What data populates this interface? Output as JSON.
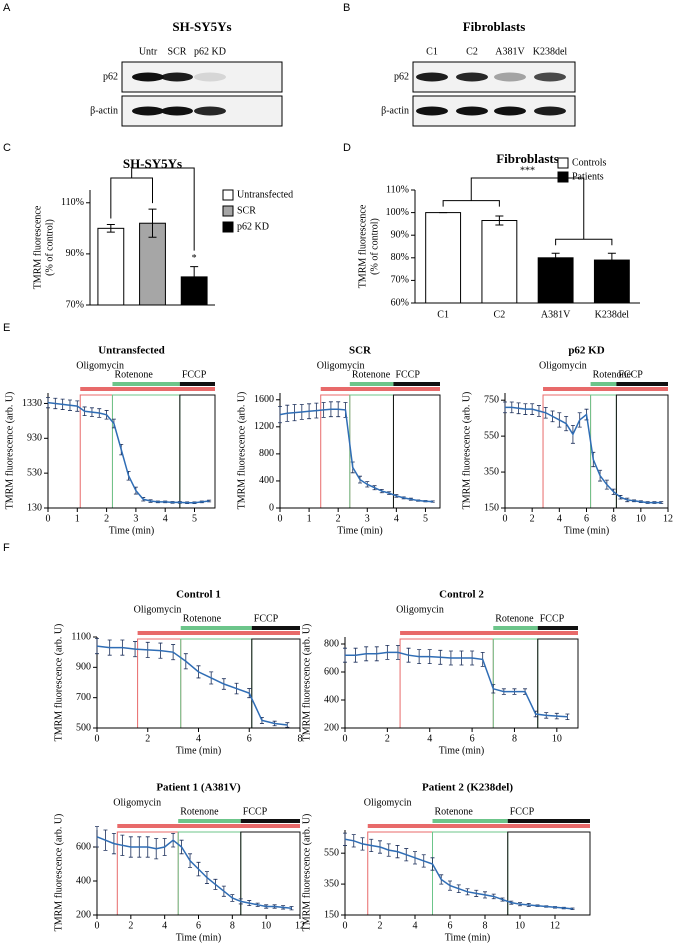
{
  "panel_labels": [
    "A",
    "B",
    "C",
    "D",
    "E",
    "F"
  ],
  "blots": [
    {
      "title": "SH-SY5Ys",
      "lanes": [
        "Untr",
        "SCR",
        "p62 KD"
      ],
      "rows": [
        "p62",
        "β-actin"
      ]
    },
    {
      "title": "Fibroblasts",
      "lanes": [
        "C1",
        "C2",
        "A381V",
        "K238del"
      ],
      "rows": [
        "p62",
        "β-actin"
      ]
    }
  ],
  "chart_data": [
    {
      "type": "bar",
      "title": "SH-SY5Ys",
      "ylabel": [
        "TMRM fluorescence",
        "(% of control)"
      ],
      "categories": [
        "Untransfected",
        "SCR",
        "p62 KD"
      ],
      "colors": [
        "#ffffff",
        "#a6a6a6",
        "#000000"
      ],
      "values": [
        100,
        102,
        81
      ],
      "errors": [
        1.5,
        5.5,
        4
      ],
      "ylim": [
        70,
        115
      ],
      "yticks": [
        {
          "value": 70,
          "label": "70%"
        },
        {
          "value": 90,
          "label": "90%"
        },
        {
          "value": 110,
          "label": "110%"
        }
      ],
      "significance": "*"
    },
    {
      "type": "bar",
      "title": "Fibroblasts",
      "ylabel": [
        "TMRM fluorescence",
        "(% of control)"
      ],
      "categories": [
        "C1",
        "C2",
        "A381V",
        "K238del"
      ],
      "groups": [
        {
          "name": "Controls",
          "color": "#ffffff"
        },
        {
          "name": "Patients",
          "color": "#000000"
        }
      ],
      "group_of": [
        0,
        0,
        1,
        1
      ],
      "values": [
        100,
        96.5,
        80,
        79
      ],
      "errors": [
        0,
        2,
        2,
        3
      ],
      "ylim": [
        60,
        110
      ],
      "yticks": [
        {
          "value": 60,
          "label": "60%"
        },
        {
          "value": 70,
          "label": "70%"
        },
        {
          "value": 80,
          "label": "80%"
        },
        {
          "value": 90,
          "label": "90%"
        },
        {
          "value": 100,
          "label": "100%"
        },
        {
          "value": 110,
          "label": "110%"
        }
      ],
      "significance": "***"
    },
    {
      "type": "line",
      "title": "Untransfected",
      "xlabel": "Time (min)",
      "ylabel": "TMRM fluorescence (arb. U)",
      "xlim": [
        0,
        5.7
      ],
      "xticks": [
        0,
        1,
        2,
        3,
        4,
        5
      ],
      "ylim": [
        130,
        1450
      ],
      "yticks": [
        130,
        530,
        930,
        1330
      ],
      "x": [
        0,
        0.25,
        0.5,
        0.75,
        1,
        1.25,
        1.5,
        1.75,
        2,
        2.25,
        2.5,
        2.75,
        3,
        3.25,
        3.5,
        3.75,
        4,
        4.25,
        4.5,
        4.75,
        5,
        5.25,
        5.5
      ],
      "series": [
        {
          "color": "#2f6db5",
          "values": [
            1340,
            1330,
            1320,
            1310,
            1300,
            1240,
            1230,
            1220,
            1200,
            1100,
            800,
            500,
            330,
            230,
            210,
            200,
            200,
            195,
            195,
            190,
            190,
            200,
            210
          ],
          "errors": [
            60,
            60,
            60,
            60,
            60,
            50,
            50,
            50,
            50,
            50,
            60,
            50,
            40,
            20,
            15,
            10,
            10,
            10,
            10,
            10,
            10,
            10,
            10
          ]
        }
      ],
      "phases": [
        {
          "name": "Oligomycin",
          "start": 1.1,
          "color": "#e86a6a"
        },
        {
          "name": "Rotenone",
          "start": 2.2,
          "color": "#6cc58a"
        },
        {
          "name": "FCCP",
          "start": 4.5,
          "color": "#111111"
        }
      ]
    },
    {
      "type": "line",
      "title": "SCR",
      "xlabel": "Time (min)",
      "ylabel": "TMRM fluorescence (arb. U)",
      "xlim": [
        0,
        5.5
      ],
      "xticks": [
        0,
        1,
        2,
        3,
        4,
        5
      ],
      "ylim": [
        0,
        1700
      ],
      "yticks": [
        0,
        400,
        800,
        1200,
        1600
      ],
      "x": [
        0,
        0.25,
        0.5,
        0.75,
        1,
        1.25,
        1.5,
        1.75,
        2,
        2.25,
        2.5,
        2.75,
        3,
        3.25,
        3.5,
        3.75,
        4,
        4.25,
        4.5,
        4.75,
        5,
        5.25
      ],
      "series": [
        {
          "color": "#2f6db5",
          "values": [
            1380,
            1400,
            1410,
            1420,
            1430,
            1440,
            1450,
            1460,
            1460,
            1450,
            600,
            420,
            350,
            300,
            250,
            220,
            180,
            150,
            130,
            110,
            100,
            95
          ],
          "errors": [
            120,
            120,
            120,
            110,
            110,
            110,
            110,
            110,
            110,
            110,
            80,
            50,
            40,
            30,
            25,
            20,
            20,
            15,
            15,
            10,
            10,
            10
          ]
        }
      ],
      "phases": [
        {
          "name": "Oligomycin",
          "start": 1.4,
          "color": "#e86a6a"
        },
        {
          "name": "Rotenone",
          "start": 2.4,
          "color": "#6cc58a"
        },
        {
          "name": "FCCP",
          "start": 3.9,
          "color": "#111111"
        }
      ]
    },
    {
      "type": "line",
      "title": "p62 KD",
      "xlabel": "Time (min)",
      "ylabel": "TMRM fluorescence (arb. U)",
      "xlim": [
        0,
        12
      ],
      "xticks": [
        0,
        2,
        4,
        6,
        8,
        10,
        12
      ],
      "ylim": [
        150,
        790
      ],
      "yticks": [
        150,
        350,
        550,
        750
      ],
      "x": [
        0,
        0.5,
        1,
        1.5,
        2,
        2.5,
        3,
        3.5,
        4,
        4.5,
        5,
        5.5,
        6,
        6.5,
        7,
        7.5,
        8,
        8.5,
        9,
        9.5,
        10,
        10.5,
        11,
        11.5
      ],
      "series": [
        {
          "color": "#2f6db5",
          "values": [
            710,
            710,
            705,
            700,
            700,
            690,
            680,
            660,
            640,
            620,
            560,
            640,
            670,
            420,
            330,
            280,
            240,
            210,
            195,
            190,
            185,
            180,
            180,
            180
          ],
          "errors": [
            30,
            30,
            30,
            30,
            30,
            30,
            30,
            30,
            40,
            40,
            50,
            40,
            30,
            40,
            30,
            25,
            15,
            10,
            10,
            5,
            5,
            5,
            5,
            5
          ]
        }
      ],
      "phases": [
        {
          "name": "Oligomycin",
          "start": 2.8,
          "color": "#e86a6a"
        },
        {
          "name": "Rotenone",
          "start": 6.3,
          "color": "#6cc58a"
        },
        {
          "name": "FCCP",
          "start": 8.2,
          "color": "#111111"
        }
      ]
    },
    {
      "type": "line",
      "title": "Control 1",
      "xlabel": "Time (min)",
      "ylabel": "TMRM fluorescence (arb. U)",
      "xlim": [
        0,
        8
      ],
      "xticks": [
        0,
        2,
        4,
        6,
        8
      ],
      "ylim": [
        500,
        1100
      ],
      "yticks": [
        500,
        700,
        900,
        1100
      ],
      "x": [
        0,
        0.5,
        1,
        1.5,
        2,
        2.5,
        3,
        3.5,
        4,
        4.5,
        5,
        5.5,
        6,
        6.5,
        7,
        7.5
      ],
      "series": [
        {
          "color": "#2f6db5",
          "values": [
            1040,
            1030,
            1030,
            1020,
            1015,
            1010,
            1000,
            940,
            870,
            830,
            790,
            760,
            730,
            550,
            530,
            520
          ],
          "errors": [
            50,
            50,
            50,
            50,
            50,
            50,
            50,
            50,
            40,
            40,
            35,
            35,
            30,
            20,
            15,
            15
          ]
        }
      ],
      "phases": [
        {
          "name": "Oligomycin",
          "start": 1.6,
          "color": "#e86a6a"
        },
        {
          "name": "Rotenone",
          "start": 3.3,
          "color": "#6cc58a"
        },
        {
          "name": "FCCP",
          "start": 6.1,
          "color": "#111111"
        }
      ]
    },
    {
      "type": "line",
      "title": "Control 2",
      "xlabel": "Time (min)",
      "ylabel": "TMRM fluorescence (arb. U)",
      "xlim": [
        0,
        11
      ],
      "xticks": [
        0,
        2,
        4,
        6,
        8,
        10
      ],
      "ylim": [
        200,
        850
      ],
      "yticks": [
        200,
        400,
        600,
        800
      ],
      "x": [
        0,
        0.5,
        1,
        1.5,
        2,
        2.5,
        3,
        3.5,
        4,
        4.5,
        5,
        5.5,
        6,
        6.5,
        7,
        7.5,
        8,
        8.5,
        9,
        9.5,
        10,
        10.5
      ],
      "series": [
        {
          "color": "#2f6db5",
          "values": [
            720,
            720,
            730,
            730,
            740,
            740,
            720,
            710,
            710,
            705,
            700,
            700,
            700,
            690,
            480,
            460,
            460,
            460,
            300,
            290,
            285,
            280
          ],
          "errors": [
            50,
            50,
            50,
            50,
            50,
            50,
            50,
            50,
            50,
            50,
            50,
            50,
            50,
            50,
            30,
            20,
            20,
            20,
            20,
            20,
            20,
            20
          ]
        }
      ],
      "phases": [
        {
          "name": "Oligomycin",
          "start": 2.6,
          "color": "#e86a6a"
        },
        {
          "name": "Rotenone",
          "start": 7,
          "color": "#6cc58a"
        },
        {
          "name": "FCCP",
          "start": 9.1,
          "color": "#111111"
        }
      ]
    },
    {
      "type": "line",
      "title": "Patient 1 (A381V)",
      "xlabel": "Time (min)",
      "ylabel": "TMRM fluorescence (arb. U)",
      "xlim": [
        0,
        12
      ],
      "xticks": [
        0,
        2,
        4,
        6,
        8,
        10,
        12
      ],
      "ylim": [
        200,
        700
      ],
      "yticks": [
        200,
        400,
        600
      ],
      "x": [
        0,
        0.5,
        1,
        1.5,
        2,
        2.5,
        3,
        3.5,
        4,
        4.5,
        5,
        5.5,
        6,
        6.5,
        7,
        7.5,
        8,
        8.5,
        9,
        9.5,
        10,
        10.5,
        11,
        11.5
      ],
      "series": [
        {
          "color": "#2f6db5",
          "values": [
            660,
            640,
            620,
            610,
            600,
            600,
            600,
            590,
            600,
            640,
            600,
            520,
            470,
            420,
            380,
            340,
            300,
            280,
            270,
            260,
            250,
            250,
            245,
            240
          ],
          "errors": [
            60,
            60,
            60,
            60,
            60,
            60,
            60,
            60,
            50,
            40,
            40,
            40,
            40,
            35,
            30,
            30,
            20,
            15,
            15,
            10,
            10,
            10,
            10,
            10
          ]
        }
      ],
      "phases": [
        {
          "name": "Oligomycin",
          "start": 1.2,
          "color": "#e86a6a"
        },
        {
          "name": "Rotenone",
          "start": 4.8,
          "color": "#6cc58a"
        },
        {
          "name": "FCCP",
          "start": 8.5,
          "color": "#111111"
        }
      ]
    },
    {
      "type": "line",
      "title": "Patient 2 (K238del)",
      "xlabel": "Time (min)",
      "ylabel": "TMRM fluorescence (arb. U)",
      "xlim": [
        0,
        14
      ],
      "xticks": [
        0,
        2,
        4,
        6,
        8,
        10,
        12
      ],
      "ylim": [
        150,
        700
      ],
      "yticks": [
        150,
        350,
        550
      ],
      "x": [
        0,
        0.5,
        1,
        1.5,
        2,
        2.5,
        3,
        3.5,
        4,
        4.5,
        5,
        5.5,
        6,
        6.5,
        7,
        7.5,
        8,
        8.5,
        9,
        9.5,
        10,
        10.5,
        11,
        11.5,
        12,
        12.5,
        13
      ],
      "series": [
        {
          "color": "#2f6db5",
          "values": [
            640,
            630,
            610,
            600,
            590,
            570,
            560,
            540,
            520,
            500,
            480,
            380,
            340,
            320,
            300,
            290,
            280,
            270,
            250,
            230,
            220,
            215,
            210,
            205,
            200,
            195,
            190
          ],
          "errors": [
            40,
            40,
            40,
            40,
            40,
            40,
            40,
            40,
            40,
            40,
            40,
            30,
            30,
            25,
            20,
            20,
            20,
            15,
            10,
            10,
            10,
            10,
            5,
            5,
            5,
            5,
            5
          ]
        }
      ],
      "phases": [
        {
          "name": "Oligomycin",
          "start": 1.3,
          "color": "#e86a6a"
        },
        {
          "name": "Rotenone",
          "start": 5,
          "color": "#6cc58a"
        },
        {
          "name": "FCCP",
          "start": 9.3,
          "color": "#111111"
        }
      ]
    }
  ]
}
